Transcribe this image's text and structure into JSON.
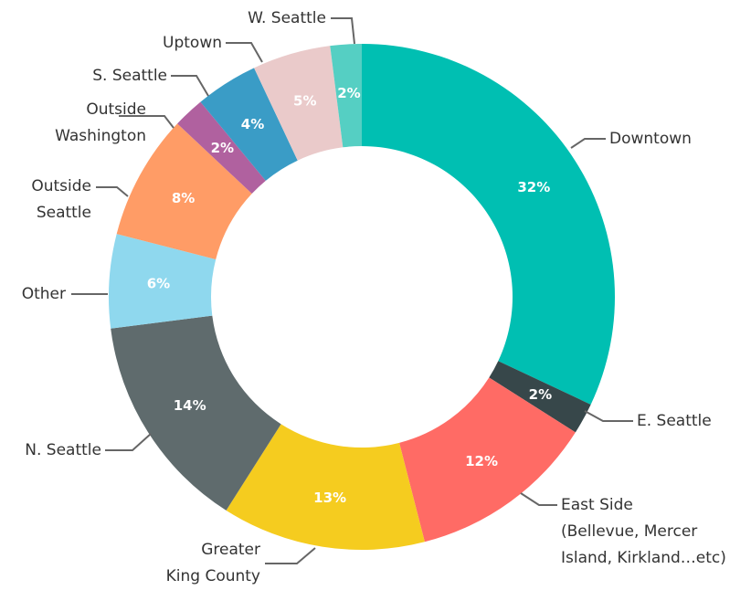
{
  "chart_data": {
    "type": "donut",
    "categories": [
      "Downtown",
      "E. Seattle",
      "East Side\n(Bellevue, Mercer\nIsland, Kirkland…etc)",
      "Greater\nKing County",
      "N. Seattle",
      "Other",
      "Outside\nSeattle",
      "Outside\nWashington",
      "S. Seattle",
      "Uptown",
      "W. Seattle"
    ],
    "values": [
      32,
      2,
      12,
      13,
      14,
      6,
      8,
      2,
      4,
      5,
      2
    ],
    "value_labels": [
      "32%",
      "2%",
      "12%",
      "13%",
      "14%",
      "6%",
      "8%",
      "2%",
      "4%",
      "5%",
      "2%"
    ],
    "colors": [
      "#00bfb2",
      "#37474a",
      "#ff6b65",
      "#f5cc1f",
      "#5f6b6d",
      "#8fd8ee",
      "#ff9c66",
      "#b0619f",
      "#3a9cc6",
      "#eacaca",
      "#55cfc3"
    ]
  }
}
